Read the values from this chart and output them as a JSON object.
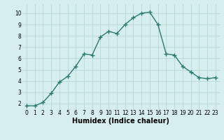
{
  "x": [
    0,
    1,
    2,
    3,
    4,
    5,
    6,
    7,
    8,
    9,
    10,
    11,
    12,
    13,
    14,
    15,
    16,
    17,
    18,
    19,
    20,
    21,
    22,
    23
  ],
  "y": [
    1.8,
    1.8,
    2.1,
    2.9,
    3.9,
    4.4,
    5.3,
    6.4,
    6.3,
    7.9,
    8.4,
    8.2,
    9.0,
    9.6,
    10.0,
    10.1,
    9.0,
    6.4,
    6.3,
    5.3,
    4.8,
    4.3,
    4.2,
    4.3
  ],
  "line_color": "#2d7a6e",
  "marker": "D",
  "marker_size": 2.0,
  "bg_color": "#d6eeee",
  "grid_color": "#b8d8d8",
  "xlabel": "Humidex (Indice chaleur)",
  "xlim": [
    -0.5,
    23.5
  ],
  "ylim": [
    1.5,
    10.8
  ],
  "yticks": [
    2,
    3,
    4,
    5,
    6,
    7,
    8,
    9,
    10
  ],
  "xticks": [
    0,
    1,
    2,
    3,
    4,
    5,
    6,
    7,
    8,
    9,
    10,
    11,
    12,
    13,
    14,
    15,
    16,
    17,
    18,
    19,
    20,
    21,
    22,
    23
  ],
  "tick_fontsize": 5.5,
  "xlabel_fontsize": 7,
  "line_width": 1.0
}
